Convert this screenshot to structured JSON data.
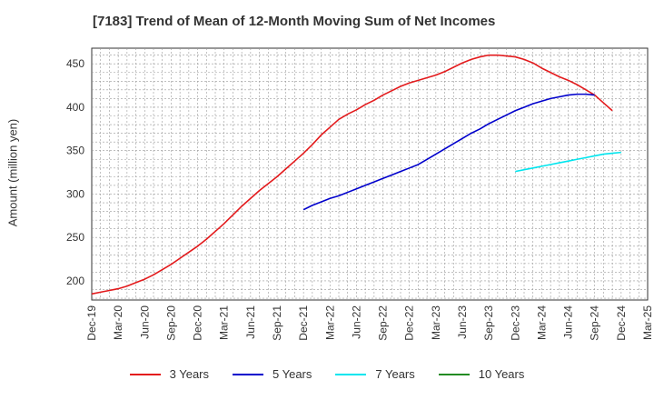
{
  "chart_data": {
    "type": "line",
    "title": "[7183]  Trend of Mean of 12-Month Moving Sum of Net Incomes",
    "ylabel": "Amount (million yen)",
    "xlabel": "",
    "ylim": [
      178,
      468
    ],
    "yticks": [
      200,
      250,
      300,
      350,
      400,
      450
    ],
    "x_ticks": [
      "Dec-19",
      "Mar-20",
      "Jun-20",
      "Sep-20",
      "Dec-20",
      "Mar-21",
      "Jun-21",
      "Sep-21",
      "Dec-21",
      "Mar-22",
      "Jun-22",
      "Sep-22",
      "Dec-22",
      "Mar-23",
      "Jun-23",
      "Sep-23",
      "Dec-23",
      "Mar-24",
      "Jun-24",
      "Sep-24",
      "Dec-24",
      "Mar-25"
    ],
    "grid": true,
    "legend_position": "bottom",
    "series": [
      {
        "name": "3 Years",
        "color": "#e31a1c",
        "start_index": 0,
        "values": [
          185,
          187,
          189,
          191,
          194,
          198,
          202,
          207,
          213,
          219,
          226,
          233,
          240,
          248,
          257,
          266,
          276,
          286,
          295,
          304,
          312,
          320,
          329,
          338,
          347,
          357,
          368,
          377,
          386,
          392,
          397,
          403,
          408,
          414,
          419,
          424,
          428,
          431,
          434,
          437,
          441,
          446,
          451,
          455,
          458,
          460,
          460,
          459,
          458,
          455,
          451,
          445,
          440,
          435,
          431,
          426,
          420,
          414,
          405,
          396
        ]
      },
      {
        "name": "5 Years",
        "color": "#0000cc",
        "start_index": 24,
        "values": [
          282,
          287,
          291,
          295,
          298,
          302,
          306,
          310,
          314,
          318,
          322,
          326,
          330,
          334,
          340,
          346,
          352,
          358,
          364,
          370,
          375,
          381,
          386,
          391,
          396,
          400,
          404,
          407,
          410,
          412,
          414,
          415,
          415,
          414
        ]
      },
      {
        "name": "7 Years",
        "color": "#00e5ee",
        "start_index": 48,
        "values": [
          326,
          328,
          330,
          332,
          334,
          336,
          338,
          340,
          342,
          344,
          346,
          347,
          348
        ]
      },
      {
        "name": "10 Years",
        "color": "#228b22",
        "start_index": 0,
        "values": []
      }
    ]
  }
}
